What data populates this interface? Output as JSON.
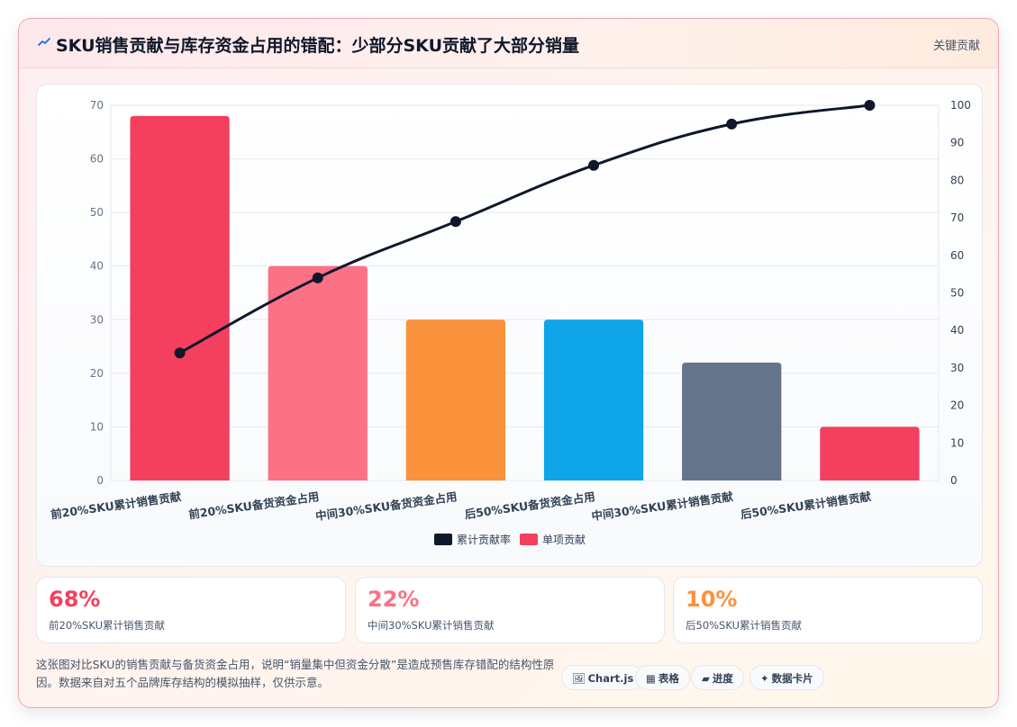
{
  "header": {
    "title": "SKU销售贡献与库存资金占用的错配：少部分SKU贡献了大部分销量",
    "tag": "关键贡献"
  },
  "chart_data": {
    "type": "bar",
    "categories": [
      "前20%SKU累计销售贡献",
      "前20%SKU备货资金占用",
      "中间30%SKU备货资金占用",
      "后50%SKU备货资金占用",
      "中间30%SKU累计销售贡献",
      "后50%SKU累计销售贡献"
    ],
    "series": [
      {
        "name": "单项贡献",
        "type": "bar",
        "axis": "left",
        "values": [
          68,
          40,
          30,
          30,
          22,
          10
        ],
        "colors": [
          "#f43f5e",
          "#fb7185",
          "#fb923c",
          "#0ea5e9",
          "#64748b",
          "#f43f5e"
        ]
      },
      {
        "name": "累计贡献率",
        "type": "line",
        "axis": "right",
        "values": [
          34,
          54,
          69,
          84,
          95,
          100
        ],
        "color": "#0f172a"
      }
    ],
    "y_left": {
      "min": 0,
      "max": 70,
      "step": 10
    },
    "y_right": {
      "min": 0,
      "max": 100,
      "step": 10
    },
    "grid": true,
    "legend_position": "bottom"
  },
  "stats": [
    {
      "value": "68%",
      "label": "前20%SKU累计销售贡献",
      "color": "#f43f5e"
    },
    {
      "value": "22%",
      "label": "中间30%SKU累计销售贡献",
      "color": "#fb7185"
    },
    {
      "value": "10%",
      "label": "后50%SKU累计销售贡献",
      "color": "#fb923c"
    }
  ],
  "note": "这张图对比SKU的销售贡献与备货资金占用，说明“销量集中但资金分散”是造成预售库存错配的结构性原因。数据来自对五个品牌库存结构的模拟抽样，仅供示意。",
  "chips": [
    {
      "icon": "🖼",
      "icon_name": "image-icon",
      "label": "Chart.js"
    },
    {
      "icon": "▦",
      "icon_name": "table-icon",
      "label": "表格"
    },
    {
      "icon": "▰",
      "icon_name": "progress-icon",
      "label": "进度"
    },
    {
      "icon": "✦",
      "icon_name": "sparkle-icon",
      "label": "数据卡片"
    }
  ]
}
